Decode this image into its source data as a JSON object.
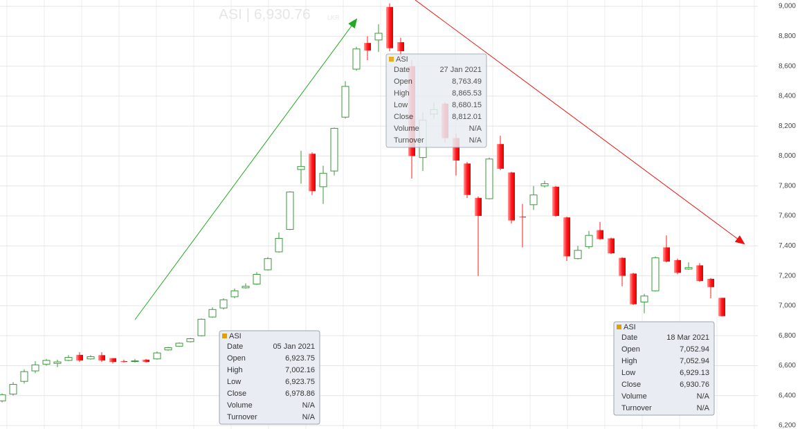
{
  "chart_data": {
    "type": "candlestick",
    "title": "ASI | 6,930.76",
    "unit": "LKR",
    "up_color": "#3a9a3a",
    "down_color": "#ff1a1a",
    "grid": true,
    "ylim": [
      6177,
      9042
    ],
    "yticks": [
      {
        "value": 6200,
        "label": "6,200"
      },
      {
        "value": 6400,
        "label": "6,400"
      },
      {
        "value": 6600,
        "label": "6,600"
      },
      {
        "value": 6800,
        "label": "6,800"
      },
      {
        "value": 7000,
        "label": "7,000"
      },
      {
        "value": 7200,
        "label": "7,200"
      },
      {
        "value": 7400,
        "label": "7,400"
      },
      {
        "value": 7600,
        "label": "7,600"
      },
      {
        "value": 7800,
        "label": "7,800"
      },
      {
        "value": 8000,
        "label": "8,000"
      },
      {
        "value": 8200,
        "label": "8,200"
      },
      {
        "value": 8400,
        "label": "8,400"
      },
      {
        "value": 8600,
        "label": "8,600"
      },
      {
        "value": 8800,
        "label": "8,800"
      },
      {
        "value": 9000,
        "label": "9,000"
      }
    ],
    "open": [
      6365,
      6410,
      6495,
      6565,
      6610,
      6615,
      6635,
      6672,
      6645,
      6670,
      6650,
      6630,
      6628,
      6640,
      6645,
      6705,
      6730,
      6760,
      6800,
      6925,
      6985,
      7060,
      7120,
      7145,
      7240,
      7360,
      7510,
      7910,
      8015,
      7795,
      7900,
      8260,
      8580,
      8755,
      8775,
      8995,
      8760,
      8600,
      7990,
      8280,
      8350,
      8120,
      7950,
      7720,
      7715,
      8080,
      7890,
      7595,
      7675,
      7800,
      7795,
      7590,
      7315,
      7395,
      7505,
      7450,
      7320,
      7215,
      7025,
      7100,
      7390,
      7305,
      7245,
      7270,
      7180,
      7053
    ],
    "high": [
      6415,
      6490,
      6575,
      6630,
      6645,
      6640,
      6670,
      6690,
      6670,
      6690,
      6650,
      6640,
      6645,
      6645,
      6695,
      6725,
      6755,
      6785,
      6915,
      6990,
      7050,
      7115,
      7150,
      7225,
      7325,
      7490,
      7765,
      8035,
      8025,
      7935,
      8190,
      8500,
      8730,
      8800,
      8880,
      9020,
      8790,
      8640,
      8290,
      8360,
      8360,
      8150,
      7960,
      7730,
      7990,
      8135,
      7895,
      7680,
      7800,
      7835,
      7800,
      7595,
      7400,
      7500,
      7560,
      7455,
      7325,
      7220,
      7080,
      7330,
      7470,
      7315,
      7290,
      7285,
      7185,
      7053
    ],
    "low": [
      6355,
      6400,
      6480,
      6550,
      6600,
      6590,
      6630,
      6625,
      6640,
      6625,
      6615,
      6620,
      6620,
      6620,
      6640,
      6700,
      6725,
      6755,
      6795,
      6920,
      6975,
      7050,
      7115,
      7140,
      7235,
      7355,
      7505,
      7815,
      7740,
      7680,
      7870,
      8250,
      8570,
      8640,
      8695,
      8700,
      8650,
      7850,
      7900,
      8250,
      8090,
      7870,
      7720,
      7200,
      7710,
      7905,
      7550,
      7390,
      7640,
      7790,
      7595,
      7300,
      7310,
      7380,
      7440,
      7345,
      7130,
      7005,
      6950,
      7095,
      7290,
      7210,
      7240,
      7160,
      7050,
      6929
    ],
    "close": [
      6405,
      6475,
      6560,
      6605,
      6635,
      6625,
      6655,
      6635,
      6660,
      6635,
      6625,
      6628,
      6632,
      6625,
      6685,
      6720,
      6750,
      6780,
      6910,
      6975,
      7040,
      7100,
      7130,
      7210,
      7315,
      7450,
      7760,
      7930,
      7765,
      7885,
      8185,
      8465,
      8715,
      8705,
      8820,
      8720,
      8700,
      8000,
      8240,
      8310,
      8120,
      7970,
      7740,
      7600,
      7980,
      7915,
      7570,
      7590,
      7740,
      7815,
      7600,
      7330,
      7370,
      7470,
      7445,
      7350,
      7200,
      7010,
      7065,
      7320,
      7295,
      7220,
      7255,
      7165,
      7125,
      6931
    ],
    "tooltips": [
      {
        "name": "ASI",
        "rows": [
          [
            "Date",
            "05 Jan 2021"
          ],
          [
            "Open",
            "6,923.75"
          ],
          [
            "High",
            "7,002.16"
          ],
          [
            "Low",
            "6,923.75"
          ],
          [
            "Close",
            "6,978.86"
          ],
          [
            "Volume",
            "N/A"
          ],
          [
            "Turnover",
            "N/A"
          ]
        ]
      },
      {
        "name": "ASI",
        "rows": [
          [
            "Date",
            "27 Jan 2021"
          ],
          [
            "Open",
            "8,763.49"
          ],
          [
            "High",
            "8,865.53"
          ],
          [
            "Low",
            "8,680.15"
          ],
          [
            "Close",
            "8,812.01"
          ],
          [
            "Volume",
            "N/A"
          ],
          [
            "Turnover",
            "N/A"
          ]
        ]
      },
      {
        "name": "ASI",
        "rows": [
          [
            "Date",
            "18 Mar 2021"
          ],
          [
            "Open",
            "7,052.94"
          ],
          [
            "High",
            "7,052.94"
          ],
          [
            "Low",
            "6,929.13"
          ],
          [
            "Close",
            "6,930.76"
          ],
          [
            "Volume",
            "N/A"
          ],
          [
            "Turnover",
            "N/A"
          ]
        ]
      }
    ]
  }
}
